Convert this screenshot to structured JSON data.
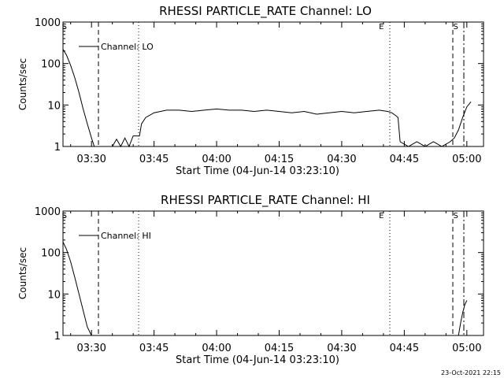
{
  "footer_date": "23-Oct-2021 22:15",
  "chart_data": [
    {
      "type": "line",
      "title": "RHESSI PARTICLE_RATE Channel: LO",
      "xlabel": "Start Time (04-Jun-14 03:23:10)",
      "ylabel": "Counts/sec",
      "yscale": "log",
      "ylim": [
        1,
        1000
      ],
      "xlim": [
        "03:23:10",
        "05:04:00"
      ],
      "x_ticks": [
        "03:30",
        "03:45",
        "04:00",
        "04:15",
        "04:30",
        "04:45",
        "05:00"
      ],
      "y_ticks": [
        "1",
        "10",
        "100",
        "1000"
      ],
      "legend": [
        "Channel: LO"
      ],
      "markers": [
        {
          "label": "S",
          "time": "03:23:30"
        },
        {
          "label": "E",
          "time": "04:39:30"
        },
        {
          "label": "S",
          "time": "04:57:20"
        }
      ],
      "series": [
        {
          "name": "Channel: LO",
          "x": [
            "03:23:10",
            "03:24:00",
            "03:25:00",
            "03:26:00",
            "03:27:00",
            "03:28:00",
            "03:29:00",
            "03:30:00",
            "03:30:40",
            "03:31:30",
            "03:32:00",
            "03:33:00",
            "03:34:00",
            "03:35:00",
            "03:36:00",
            "03:37:00",
            "03:38:00",
            "03:39:00",
            "03:40:00",
            "03:41:00",
            "03:41:30",
            "03:42:00",
            "03:43:00",
            "03:45:00",
            "03:48:00",
            "03:51:00",
            "03:54:00",
            "03:57:00",
            "04:00:00",
            "04:03:00",
            "04:06:00",
            "04:09:00",
            "04:12:00",
            "04:15:00",
            "04:18:00",
            "04:21:00",
            "04:24:00",
            "04:27:00",
            "04:30:00",
            "04:33:00",
            "04:36:00",
            "04:39:00",
            "04:41:00",
            "04:42:00",
            "04:43:00",
            "04:43:30",
            "04:44:00",
            "04:46:00",
            "04:48:00",
            "04:50:00",
            "04:52:00",
            "04:54:00",
            "04:56:00",
            "04:57:00",
            "04:58:00",
            "04:59:00",
            "05:00:00",
            "05:01:00"
          ],
          "y": [
            220,
            160,
            90,
            45,
            20,
            8,
            3.5,
            1.6,
            1,
            1,
            1,
            1,
            1,
            1,
            1.5,
            1,
            1.6,
            1,
            1.8,
            1.8,
            1.8,
            3.5,
            5,
            6.5,
            7.5,
            7.5,
            7,
            7.5,
            8,
            7.5,
            7.5,
            7,
            7.5,
            7,
            6.5,
            7,
            6,
            6.5,
            7,
            6.5,
            7,
            7.5,
            7,
            6.5,
            5.5,
            5,
            1.3,
            1,
            1.3,
            1,
            1.3,
            1,
            1.3,
            1.6,
            2.5,
            5,
            9,
            12
          ]
        }
      ]
    },
    {
      "type": "line",
      "title": "RHESSI PARTICLE_RATE Channel: HI",
      "xlabel": "Start Time (04-Jun-14 03:23:10)",
      "ylabel": "Counts/sec",
      "yscale": "log",
      "ylim": [
        1,
        1000
      ],
      "xlim": [
        "03:23:10",
        "05:04:00"
      ],
      "x_ticks": [
        "03:30",
        "03:45",
        "04:00",
        "04:15",
        "04:30",
        "04:45",
        "05:00"
      ],
      "y_ticks": [
        "1",
        "10",
        "100",
        "1000"
      ],
      "legend": [
        "Channel: HI"
      ],
      "markers": [
        {
          "label": "S",
          "time": "03:23:30"
        },
        {
          "label": "E",
          "time": "04:39:30"
        },
        {
          "label": "S",
          "time": "04:57:20"
        }
      ],
      "series": [
        {
          "name": "Channel: HI",
          "x": [
            "03:23:10",
            "03:24:00",
            "03:25:00",
            "03:26:00",
            "03:27:00",
            "03:28:00",
            "03:29:00",
            "03:30:00",
            "03:31:00",
            "04:58:00",
            "04:58:30",
            "04:59:00",
            "04:59:30",
            "05:00:00"
          ],
          "y": [
            180,
            120,
            60,
            25,
            10,
            4,
            1.6,
            1,
            null,
            1,
            2,
            3.5,
            5.5,
            7
          ]
        }
      ]
    }
  ]
}
